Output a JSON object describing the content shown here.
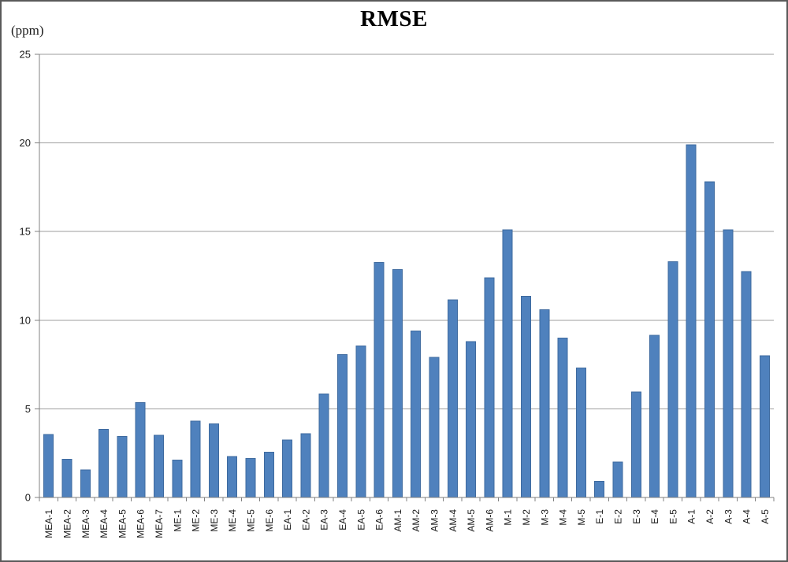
{
  "window": {
    "background_color": "#ffffff",
    "border_color": "#595959"
  },
  "chart_data": {
    "type": "bar",
    "title": "RMSE",
    "y_unit_label": "(ppm)",
    "xlabel": "",
    "ylabel": "",
    "categories": [
      "MEA-1",
      "MEA-2",
      "MEA-3",
      "MEA-4",
      "MEA-5",
      "MEA-6",
      "MEA-7",
      "ME-1",
      "ME-2",
      "ME-3",
      "ME-4",
      "ME-5",
      "ME-6",
      "EA-1",
      "EA-2",
      "EA-3",
      "EA-4",
      "EA-5",
      "EA-6",
      "AM-1",
      "AM-2",
      "AM-3",
      "AM-4",
      "AM-5",
      "AM-6",
      "M-1",
      "M-2",
      "M-3",
      "M-4",
      "M-5",
      "E-1",
      "E-2",
      "E-3",
      "E-4",
      "E-5",
      "A-1",
      "A-2",
      "A-3",
      "A-4",
      "A-5"
    ],
    "values": [
      3.55,
      2.15,
      1.55,
      3.85,
      3.45,
      5.35,
      3.5,
      2.1,
      4.3,
      4.15,
      2.3,
      2.2,
      2.55,
      3.25,
      3.6,
      5.85,
      8.05,
      8.55,
      13.25,
      12.85,
      9.4,
      7.9,
      11.15,
      8.8,
      12.4,
      15.1,
      11.35,
      10.6,
      9.0,
      7.3,
      0.9,
      2.0,
      5.95,
      9.15,
      13.3,
      19.9,
      17.8,
      15.1,
      12.75,
      8.0
    ],
    "ylim": [
      0,
      25
    ],
    "yticks": [
      0,
      5,
      10,
      15,
      20,
      25
    ],
    "grid": true,
    "legend": false,
    "bar_color": "#4F81BD",
    "bar_border_color": "#3E6A9F",
    "gridline_color": "#9E9E9E",
    "axis_color": "#808080",
    "tick_label_color": "#1a1a1a"
  }
}
